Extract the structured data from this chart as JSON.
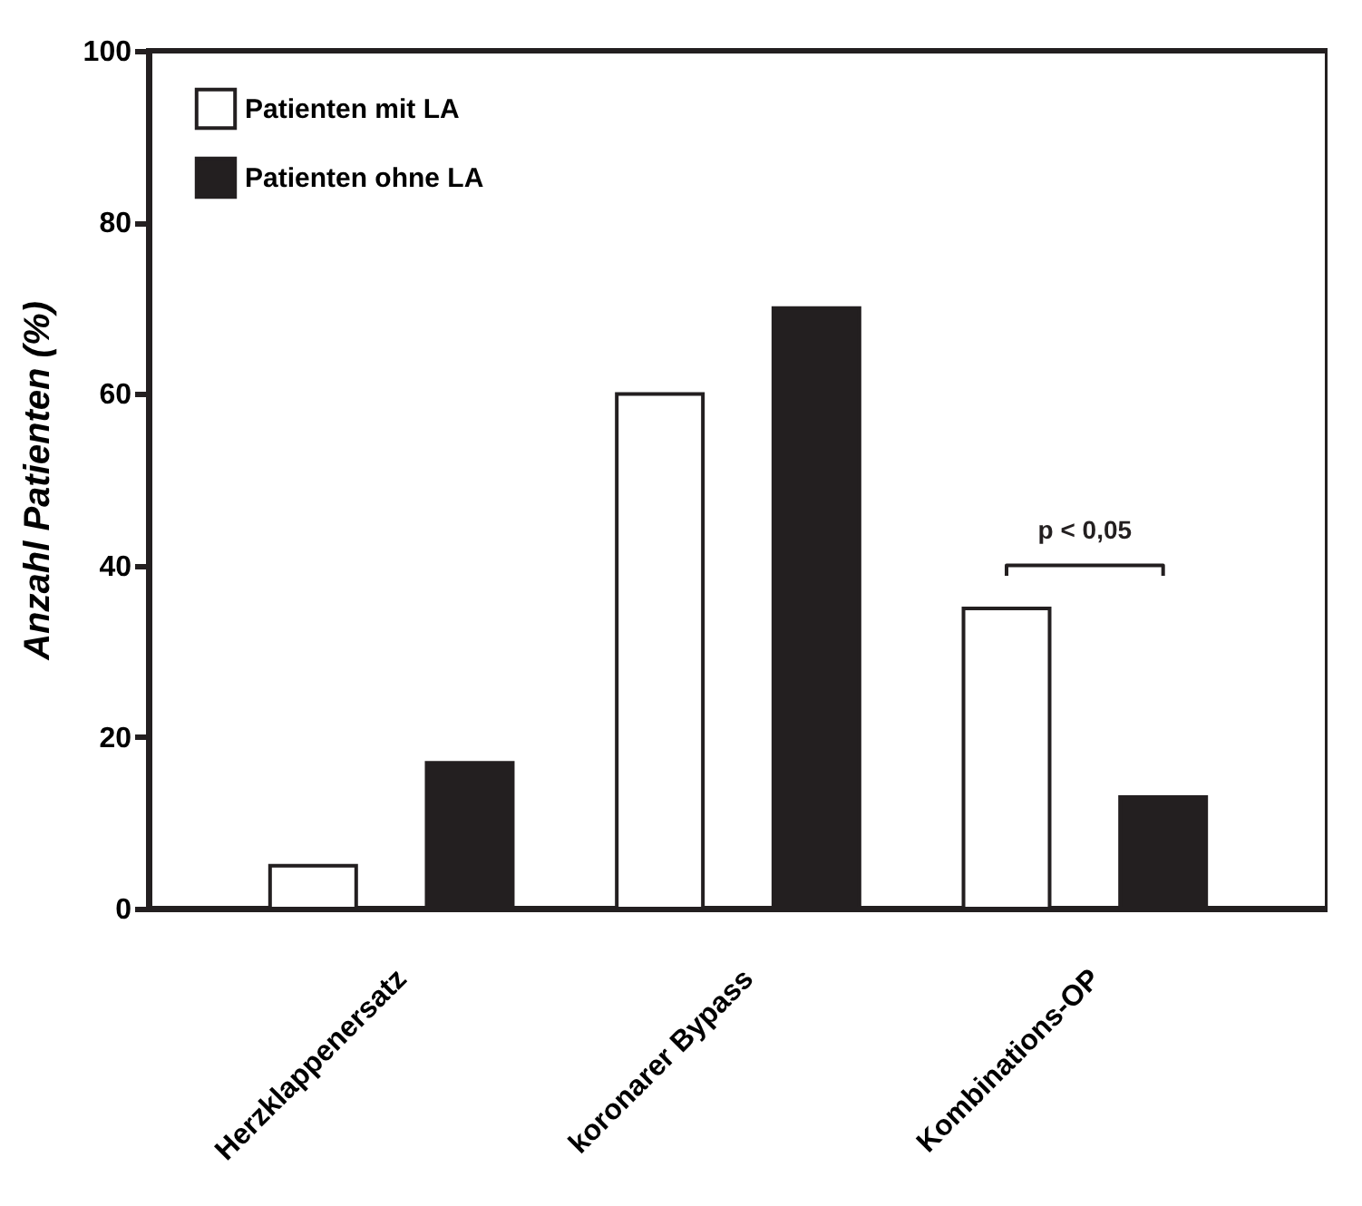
{
  "chart_data": {
    "type": "bar",
    "ylabel": "Anzahl Patienten (%)",
    "categories": [
      "Herzklappenersatz",
      "koronarer Bypass",
      "Kombinations-OP"
    ],
    "series": [
      {
        "name": "Patienten mit LA",
        "color": "#ffffff",
        "values": [
          5,
          60,
          35
        ]
      },
      {
        "name": "Patienten ohne LA",
        "color": "#231f20",
        "values": [
          17,
          70,
          13
        ]
      }
    ],
    "ylim": [
      0,
      100
    ],
    "yticks": [
      0,
      20,
      40,
      60,
      80,
      100
    ],
    "grid": false,
    "legend": "top left",
    "annotations": [
      "p < 0,05"
    ]
  }
}
